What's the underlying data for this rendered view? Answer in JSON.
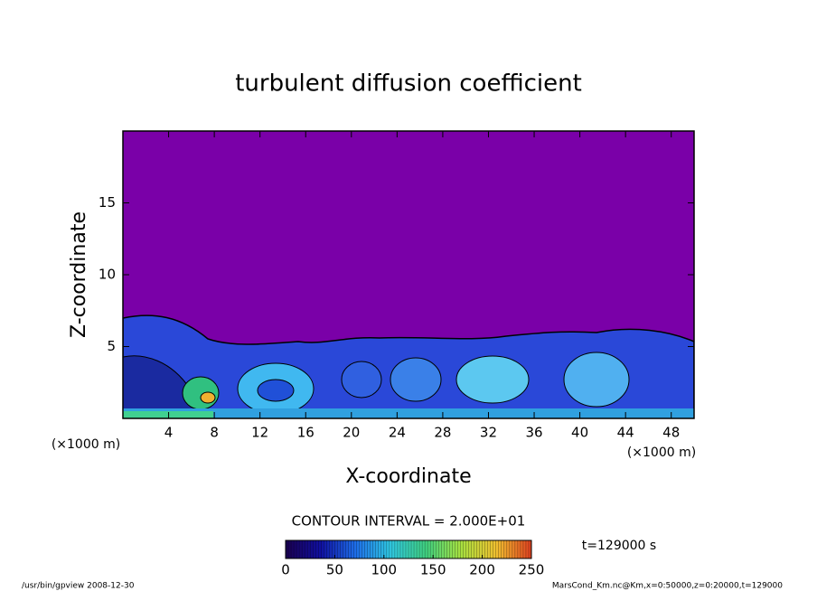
{
  "chart_data": {
    "type": "contour",
    "title": "turbulent diffusion coefficient",
    "x_label": "X-coordinate",
    "y_label": "Z-coordinate",
    "x_unit": "(×1000 m)",
    "y_unit": "(×1000 m)",
    "xlim": [
      0,
      50
    ],
    "ylim": [
      0,
      20
    ],
    "xticks": [
      4,
      8,
      12,
      16,
      20,
      24,
      28,
      32,
      36,
      40,
      44,
      48
    ],
    "yticks": [
      5,
      10,
      15
    ],
    "background_color": "#7a00a8",
    "contour_interval": "CONTOUR INTERVAL = 2.000E+01",
    "colorbar": {
      "clim": [
        0,
        250
      ],
      "ticks": [
        0,
        50,
        100,
        150,
        200,
        250
      ],
      "colors": [
        "#1a0050",
        "#1010a0",
        "#1e6ee8",
        "#30c8e0",
        "#40d080",
        "#a8e040",
        "#f0c030",
        "#e04020"
      ]
    },
    "time_label": "t=129000 s",
    "footer_left": "/usr/bin/gpview  2008-12-30",
    "footer_right": "MarsCond_Km.nc@Km,x=0:50000,z=0:20000,t=129000"
  }
}
